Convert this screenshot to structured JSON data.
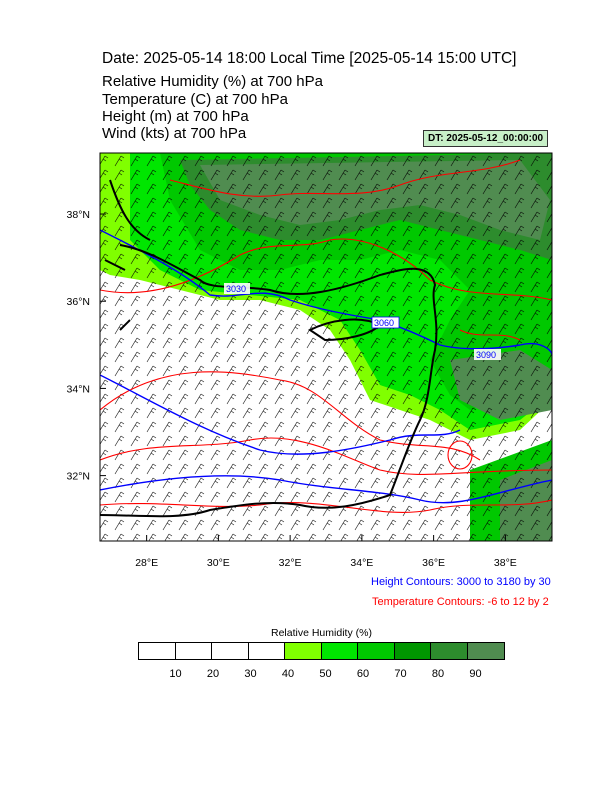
{
  "title": "Date: 2025-05-14  18:00 Local Time [2025-05-14  15:00 UTC]",
  "variables": [
    "Relative Humidity   (%)     at   700 hPa",
    "Temperature   (C)     at   700 hPa",
    "Height   (m)     at   700 hPa",
    "Wind   (kts)     at   700 hPa"
  ],
  "dt_label": "DT: 2025-05-12_00:00:00",
  "map": {
    "lon_ticks": [
      "28°E",
      "30°E",
      "32°E",
      "34°E",
      "36°E",
      "38°E"
    ],
    "lon_values": [
      28,
      30,
      32,
      34,
      36,
      38
    ],
    "lat_ticks": [
      "38°N",
      "36°N",
      "34°N",
      "32°N"
    ],
    "lat_values": [
      38,
      36,
      34,
      32
    ],
    "lon_range": [
      26.7,
      39.3
    ],
    "lat_range": [
      30.5,
      39.4
    ],
    "height_contour_labels": [
      "3030",
      "3060",
      "3090"
    ],
    "height_contour_color": "#0000ff",
    "temperature_contour_color": "#ff0000",
    "coastline_color": "#000000"
  },
  "height_contours_note": "Height Contours: 3000 to 3180 by 30",
  "temperature_contours_note": "Temperature Contours: -6 to 12 by 2",
  "colorbar": {
    "title": "Relative Humidity  (%)",
    "labels": [
      "10",
      "20",
      "30",
      "40",
      "50",
      "60",
      "70",
      "80",
      "90"
    ],
    "colors": [
      "#ffffff",
      "#ffffff",
      "#ffffff",
      "#ffffff",
      "#80ff00",
      "#00e600",
      "#00c800",
      "#009600",
      "#2d8c2d",
      "#508c50"
    ]
  }
}
